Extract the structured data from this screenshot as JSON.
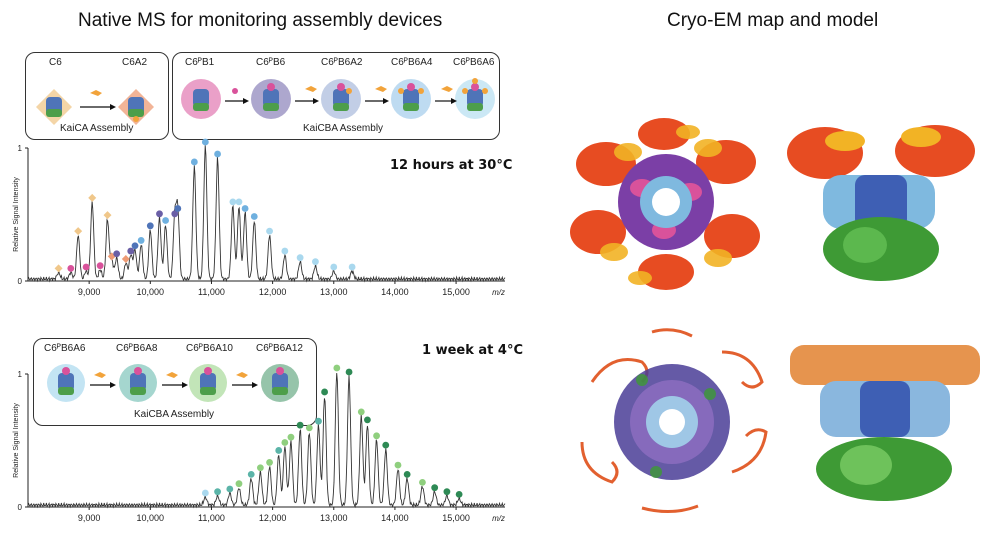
{
  "titles": {
    "left": "Native MS for monitoring assembly devices",
    "right": "Cryo-EM map and model"
  },
  "panel_top": {
    "condition": "12 hours at 30°C",
    "kaica_group": "KaiCA Assembly",
    "kaicba_group": "KaiCBA Assembly",
    "kaica_species": [
      "C6",
      "C6A2"
    ],
    "kaicba_species": [
      "C6ᴾB1",
      "C6ᴾB6",
      "C6ᴾB6A2",
      "C6ᴾB6A4",
      "C6ᴾB6A6"
    ]
  },
  "panel_bottom": {
    "condition": "1 week at 4°C",
    "group": "KaiCBA Assembly",
    "species": [
      "C6ᴾB6A6",
      "C6ᴾB6A8",
      "C6ᴾB6A10",
      "C6ᴾB6A12"
    ]
  },
  "colors": {
    "C6": "#f0c78a",
    "C6A2": "#ee9b74",
    "C6B1": "#d9529b",
    "C6B6": "#6a5fa6",
    "C6B6A2": "#4f74b8",
    "C6B6A4": "#6fb0df",
    "C6B6A6": "#a9d8ee",
    "C6B6A8": "#5bb4a8",
    "C6B6A10": "#8fcf7e",
    "C6B6A12": "#2e8a55"
  },
  "chart_data": [
    {
      "type": "line",
      "title": "12 hours at 30°C",
      "xlabel": "m/z",
      "ylabel": "Relative Signal Intensity",
      "xlim": [
        8000,
        15800
      ],
      "ylim": [
        0,
        1
      ],
      "xticks": [
        "9,000",
        "10,000",
        "11,000",
        "12,000",
        "13,000",
        "14,000",
        "15,000"
      ],
      "yticks": [
        "0",
        "1"
      ],
      "peaks": [
        {
          "mz": 8500,
          "intensity": 0.05,
          "species": "C6"
        },
        {
          "mz": 8700,
          "intensity": 0.05,
          "species": "C6B1"
        },
        {
          "mz": 8820,
          "intensity": 0.33,
          "species": "C6"
        },
        {
          "mz": 8950,
          "intensity": 0.06,
          "species": "C6B1"
        },
        {
          "mz": 9050,
          "intensity": 0.58,
          "species": "C6"
        },
        {
          "mz": 9180,
          "intensity": 0.07,
          "species": "C6B1"
        },
        {
          "mz": 9300,
          "intensity": 0.45,
          "species": "C6"
        },
        {
          "mz": 9370,
          "intensity": 0.14,
          "species": "C6A2"
        },
        {
          "mz": 9450,
          "intensity": 0.16,
          "species": "C6B6"
        },
        {
          "mz": 9600,
          "intensity": 0.12,
          "species": "C6A2"
        },
        {
          "mz": 9680,
          "intensity": 0.18,
          "species": "C6B6"
        },
        {
          "mz": 9750,
          "intensity": 0.22,
          "species": "C6B6A2"
        },
        {
          "mz": 9850,
          "intensity": 0.26,
          "species": "C6B6A4"
        },
        {
          "mz": 10000,
          "intensity": 0.37,
          "species": "C6B6A2"
        },
        {
          "mz": 10150,
          "intensity": 0.46,
          "species": "C6B6"
        },
        {
          "mz": 10250,
          "intensity": 0.41,
          "species": "C6B6A4"
        },
        {
          "mz": 10400,
          "intensity": 0.46,
          "species": "C6B6"
        },
        {
          "mz": 10450,
          "intensity": 0.5,
          "species": "C6B6A2"
        },
        {
          "mz": 10720,
          "intensity": 0.85,
          "species": "C6B6A4"
        },
        {
          "mz": 10900,
          "intensity": 1.0,
          "species": "C6B6A4"
        },
        {
          "mz": 11100,
          "intensity": 0.91,
          "species": "C6B6A4"
        },
        {
          "mz": 11350,
          "intensity": 0.55,
          "species": "C6B6A6"
        },
        {
          "mz": 11450,
          "intensity": 0.55,
          "species": "C6B6A6"
        },
        {
          "mz": 11550,
          "intensity": 0.5,
          "species": "C6B6A4"
        },
        {
          "mz": 11700,
          "intensity": 0.44,
          "species": "C6B6A4"
        },
        {
          "mz": 11950,
          "intensity": 0.33,
          "species": "C6B6A6"
        },
        {
          "mz": 12200,
          "intensity": 0.18,
          "species": "C6B6A6"
        },
        {
          "mz": 12450,
          "intensity": 0.13,
          "species": "C6B6A6"
        },
        {
          "mz": 12700,
          "intensity": 0.1,
          "species": "C6B6A6"
        },
        {
          "mz": 13000,
          "intensity": 0.06,
          "species": "C6B6A6"
        },
        {
          "mz": 13300,
          "intensity": 0.06,
          "species": "C6B6A6"
        }
      ]
    },
    {
      "type": "line",
      "title": "1 week at 4°C",
      "xlabel": "m/z",
      "ylabel": "Relative Signal Intensity",
      "xlim": [
        8000,
        15800
      ],
      "ylim": [
        0,
        1
      ],
      "xticks": [
        "9,000",
        "10,000",
        "11,000",
        "12,000",
        "13,000",
        "14,000",
        "15,000"
      ],
      "yticks": [
        "0",
        "1"
      ],
      "peaks": [
        {
          "mz": 10900,
          "intensity": 0.06,
          "species": "C6B6A6"
        },
        {
          "mz": 11100,
          "intensity": 0.07,
          "species": "C6B6A8"
        },
        {
          "mz": 11300,
          "intensity": 0.09,
          "species": "C6B6A8"
        },
        {
          "mz": 11450,
          "intensity": 0.13,
          "species": "C6B6A10"
        },
        {
          "mz": 11650,
          "intensity": 0.2,
          "species": "C6B6A8"
        },
        {
          "mz": 11800,
          "intensity": 0.25,
          "species": "C6B6A10"
        },
        {
          "mz": 11950,
          "intensity": 0.29,
          "species": "C6B6A10"
        },
        {
          "mz": 12100,
          "intensity": 0.38,
          "species": "C6B6A8"
        },
        {
          "mz": 12200,
          "intensity": 0.44,
          "species": "C6B6A10"
        },
        {
          "mz": 12300,
          "intensity": 0.48,
          "species": "C6B6A10"
        },
        {
          "mz": 12450,
          "intensity": 0.57,
          "species": "C6B6A12"
        },
        {
          "mz": 12600,
          "intensity": 0.55,
          "species": "C6B6A10"
        },
        {
          "mz": 12750,
          "intensity": 0.6,
          "species": "C6B6A8"
        },
        {
          "mz": 12850,
          "intensity": 0.82,
          "species": "C6B6A12"
        },
        {
          "mz": 13050,
          "intensity": 1.0,
          "species": "C6B6A10"
        },
        {
          "mz": 13250,
          "intensity": 0.97,
          "species": "C6B6A12"
        },
        {
          "mz": 13450,
          "intensity": 0.67,
          "species": "C6B6A10"
        },
        {
          "mz": 13550,
          "intensity": 0.61,
          "species": "C6B6A12"
        },
        {
          "mz": 13700,
          "intensity": 0.49,
          "species": "C6B6A10"
        },
        {
          "mz": 13850,
          "intensity": 0.42,
          "species": "C6B6A12"
        },
        {
          "mz": 14050,
          "intensity": 0.27,
          "species": "C6B6A10"
        },
        {
          "mz": 14200,
          "intensity": 0.2,
          "species": "C6B6A12"
        },
        {
          "mz": 14450,
          "intensity": 0.14,
          "species": "C6B6A10"
        },
        {
          "mz": 14650,
          "intensity": 0.1,
          "species": "C6B6A12"
        },
        {
          "mz": 14850,
          "intensity": 0.07,
          "species": "C6B6A12"
        },
        {
          "mz": 15050,
          "intensity": 0.05,
          "species": "C6B6A12"
        }
      ]
    }
  ]
}
